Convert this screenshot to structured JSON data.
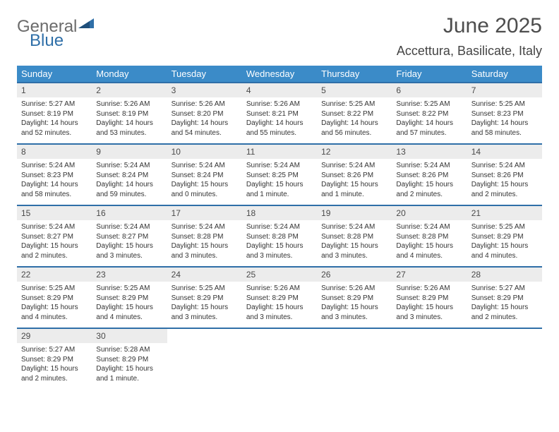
{
  "logo": {
    "part1": "General",
    "part2": "Blue"
  },
  "title": "June 2025",
  "location": "Accettura, Basilicate, Italy",
  "day_headers": [
    "Sunday",
    "Monday",
    "Tuesday",
    "Wednesday",
    "Thursday",
    "Friday",
    "Saturday"
  ],
  "styling": {
    "header_bg": "#3b8bc8",
    "header_text": "#ffffff",
    "daynum_bg": "#ececec",
    "week_border": "#2f6fa8",
    "body_text": "#333333",
    "title_color": "#4d4d4d",
    "logo_gray": "#6b6b6b",
    "logo_blue": "#2f6fa8",
    "page_bg": "#ffffff",
    "month_fontsize": 30,
    "location_fontsize": 18,
    "dayheader_fontsize": 13,
    "daynum_fontsize": 12,
    "detail_fontsize": 10
  },
  "days": [
    {
      "n": "1",
      "sunrise": "5:27 AM",
      "sunset": "8:19 PM",
      "daylight": "14 hours and 52 minutes."
    },
    {
      "n": "2",
      "sunrise": "5:26 AM",
      "sunset": "8:19 PM",
      "daylight": "14 hours and 53 minutes."
    },
    {
      "n": "3",
      "sunrise": "5:26 AM",
      "sunset": "8:20 PM",
      "daylight": "14 hours and 54 minutes."
    },
    {
      "n": "4",
      "sunrise": "5:26 AM",
      "sunset": "8:21 PM",
      "daylight": "14 hours and 55 minutes."
    },
    {
      "n": "5",
      "sunrise": "5:25 AM",
      "sunset": "8:22 PM",
      "daylight": "14 hours and 56 minutes."
    },
    {
      "n": "6",
      "sunrise": "5:25 AM",
      "sunset": "8:22 PM",
      "daylight": "14 hours and 57 minutes."
    },
    {
      "n": "7",
      "sunrise": "5:25 AM",
      "sunset": "8:23 PM",
      "daylight": "14 hours and 58 minutes."
    },
    {
      "n": "8",
      "sunrise": "5:24 AM",
      "sunset": "8:23 PM",
      "daylight": "14 hours and 58 minutes."
    },
    {
      "n": "9",
      "sunrise": "5:24 AM",
      "sunset": "8:24 PM",
      "daylight": "14 hours and 59 minutes."
    },
    {
      "n": "10",
      "sunrise": "5:24 AM",
      "sunset": "8:24 PM",
      "daylight": "15 hours and 0 minutes."
    },
    {
      "n": "11",
      "sunrise": "5:24 AM",
      "sunset": "8:25 PM",
      "daylight": "15 hours and 1 minute."
    },
    {
      "n": "12",
      "sunrise": "5:24 AM",
      "sunset": "8:26 PM",
      "daylight": "15 hours and 1 minute."
    },
    {
      "n": "13",
      "sunrise": "5:24 AM",
      "sunset": "8:26 PM",
      "daylight": "15 hours and 2 minutes."
    },
    {
      "n": "14",
      "sunrise": "5:24 AM",
      "sunset": "8:26 PM",
      "daylight": "15 hours and 2 minutes."
    },
    {
      "n": "15",
      "sunrise": "5:24 AM",
      "sunset": "8:27 PM",
      "daylight": "15 hours and 2 minutes."
    },
    {
      "n": "16",
      "sunrise": "5:24 AM",
      "sunset": "8:27 PM",
      "daylight": "15 hours and 3 minutes."
    },
    {
      "n": "17",
      "sunrise": "5:24 AM",
      "sunset": "8:28 PM",
      "daylight": "15 hours and 3 minutes."
    },
    {
      "n": "18",
      "sunrise": "5:24 AM",
      "sunset": "8:28 PM",
      "daylight": "15 hours and 3 minutes."
    },
    {
      "n": "19",
      "sunrise": "5:24 AM",
      "sunset": "8:28 PM",
      "daylight": "15 hours and 3 minutes."
    },
    {
      "n": "20",
      "sunrise": "5:24 AM",
      "sunset": "8:28 PM",
      "daylight": "15 hours and 4 minutes."
    },
    {
      "n": "21",
      "sunrise": "5:25 AM",
      "sunset": "8:29 PM",
      "daylight": "15 hours and 4 minutes."
    },
    {
      "n": "22",
      "sunrise": "5:25 AM",
      "sunset": "8:29 PM",
      "daylight": "15 hours and 4 minutes."
    },
    {
      "n": "23",
      "sunrise": "5:25 AM",
      "sunset": "8:29 PM",
      "daylight": "15 hours and 4 minutes."
    },
    {
      "n": "24",
      "sunrise": "5:25 AM",
      "sunset": "8:29 PM",
      "daylight": "15 hours and 3 minutes."
    },
    {
      "n": "25",
      "sunrise": "5:26 AM",
      "sunset": "8:29 PM",
      "daylight": "15 hours and 3 minutes."
    },
    {
      "n": "26",
      "sunrise": "5:26 AM",
      "sunset": "8:29 PM",
      "daylight": "15 hours and 3 minutes."
    },
    {
      "n": "27",
      "sunrise": "5:26 AM",
      "sunset": "8:29 PM",
      "daylight": "15 hours and 3 minutes."
    },
    {
      "n": "28",
      "sunrise": "5:27 AM",
      "sunset": "8:29 PM",
      "daylight": "15 hours and 2 minutes."
    },
    {
      "n": "29",
      "sunrise": "5:27 AM",
      "sunset": "8:29 PM",
      "daylight": "15 hours and 2 minutes."
    },
    {
      "n": "30",
      "sunrise": "5:28 AM",
      "sunset": "8:29 PM",
      "daylight": "15 hours and 1 minute."
    }
  ],
  "labels": {
    "sunrise": "Sunrise:",
    "sunset": "Sunset:",
    "daylight": "Daylight:"
  },
  "grid": {
    "rows": 5,
    "cols": 7,
    "start_offset": 0,
    "total_days": 30
  }
}
